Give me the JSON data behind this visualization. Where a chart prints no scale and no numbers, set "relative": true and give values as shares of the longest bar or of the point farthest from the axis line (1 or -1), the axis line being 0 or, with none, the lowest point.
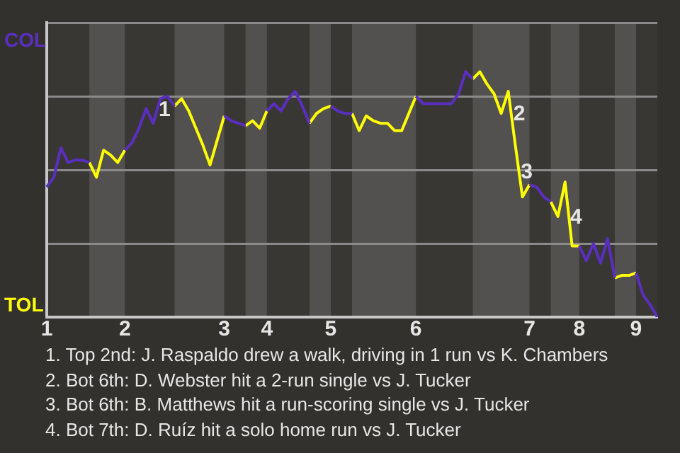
{
  "chart_data": {
    "type": "line",
    "relative": true,
    "grid": "y",
    "legend": "left",
    "categories": [
      "1",
      null,
      null,
      null,
      null,
      null,
      null,
      null,
      null,
      null,
      null,
      "2",
      null,
      null,
      null,
      null,
      null,
      null,
      null,
      null,
      null,
      null,
      null,
      null,
      null,
      "3",
      null,
      null,
      null,
      null,
      null,
      "4",
      null,
      null,
      null,
      null,
      null,
      null,
      null,
      null,
      "5",
      null,
      null,
      null,
      null,
      null,
      null,
      null,
      null,
      null,
      null,
      null,
      "6",
      null,
      null,
      null,
      null,
      null,
      null,
      null,
      null,
      null,
      null,
      null,
      null,
      null,
      null,
      null,
      "7",
      null,
      null,
      null,
      null,
      null,
      null,
      "8",
      null,
      null,
      null,
      null,
      null,
      null,
      null,
      "9",
      null,
      null,
      null
    ],
    "series": [
      {
        "name": "COL",
        "color": "#5a2fc0",
        "values": [
          0.53,
          0.57,
          0.69,
          0.63,
          0.64,
          0.64,
          0.63,
          null,
          null,
          null,
          null,
          0.68,
          0.71,
          0.77,
          0.85,
          0.79,
          0.89,
          0.9,
          0.86,
          null,
          null,
          null,
          null,
          null,
          null,
          0.82,
          0.8,
          0.79,
          0.78,
          null,
          null,
          0.84,
          0.87,
          0.84,
          0.89,
          0.92,
          0.86,
          0.79,
          null,
          null,
          0.86,
          0.84,
          0.83,
          0.83,
          null,
          null,
          null,
          null,
          null,
          null,
          null,
          null,
          0.9,
          0.87,
          0.87,
          0.87,
          0.87,
          0.87,
          0.91,
          1,
          0.97,
          null,
          null,
          null,
          null,
          null,
          null,
          null,
          0.54,
          0.53,
          0.49,
          0.47,
          null,
          null,
          null,
          0.29,
          0.23,
          0.3,
          0.22,
          0.32,
          0.16,
          null,
          null,
          0.18,
          0.09,
          0.05,
          0
        ]
      },
      {
        "name": "TOL",
        "color": "#ffff00",
        "values": [
          null,
          null,
          null,
          null,
          null,
          null,
          0.63,
          0.57,
          0.68,
          0.66,
          0.63,
          0.68,
          null,
          null,
          null,
          null,
          null,
          null,
          0.86,
          0.89,
          0.84,
          0.77,
          0.7,
          0.62,
          0.72,
          0.82,
          null,
          null,
          0.78,
          0.8,
          0.77,
          0.84,
          null,
          null,
          null,
          null,
          null,
          0.79,
          0.83,
          0.85,
          0.86,
          null,
          null,
          0.83,
          0.76,
          0.82,
          0.8,
          0.79,
          0.79,
          0.76,
          0.76,
          0.83,
          0.9,
          null,
          null,
          null,
          null,
          null,
          null,
          null,
          0.97,
          1,
          0.95,
          0.91,
          0.83,
          0.92,
          0.7,
          0.49,
          0.54,
          null,
          null,
          0.47,
          0.41,
          0.55,
          0.29,
          0.29,
          null,
          null,
          null,
          null,
          0.16,
          0.17,
          0.17,
          0.18,
          null,
          null,
          null
        ]
      }
    ],
    "annotations": [
      "1",
      "2",
      "3",
      "4",
      "1. Top 2nd: J. Raspaldo drew a walk, driving in 1 run vs K. Chambers",
      "2. Bot 6th: D. Webster hit a 2-run single vs J. Tucker",
      "3. Bot 6th: B. Matthews hit a run-scoring single vs J. Tucker",
      "4. Bot 7th: D. Ruíz hit a solo home run vs J. Tucker"
    ]
  }
}
